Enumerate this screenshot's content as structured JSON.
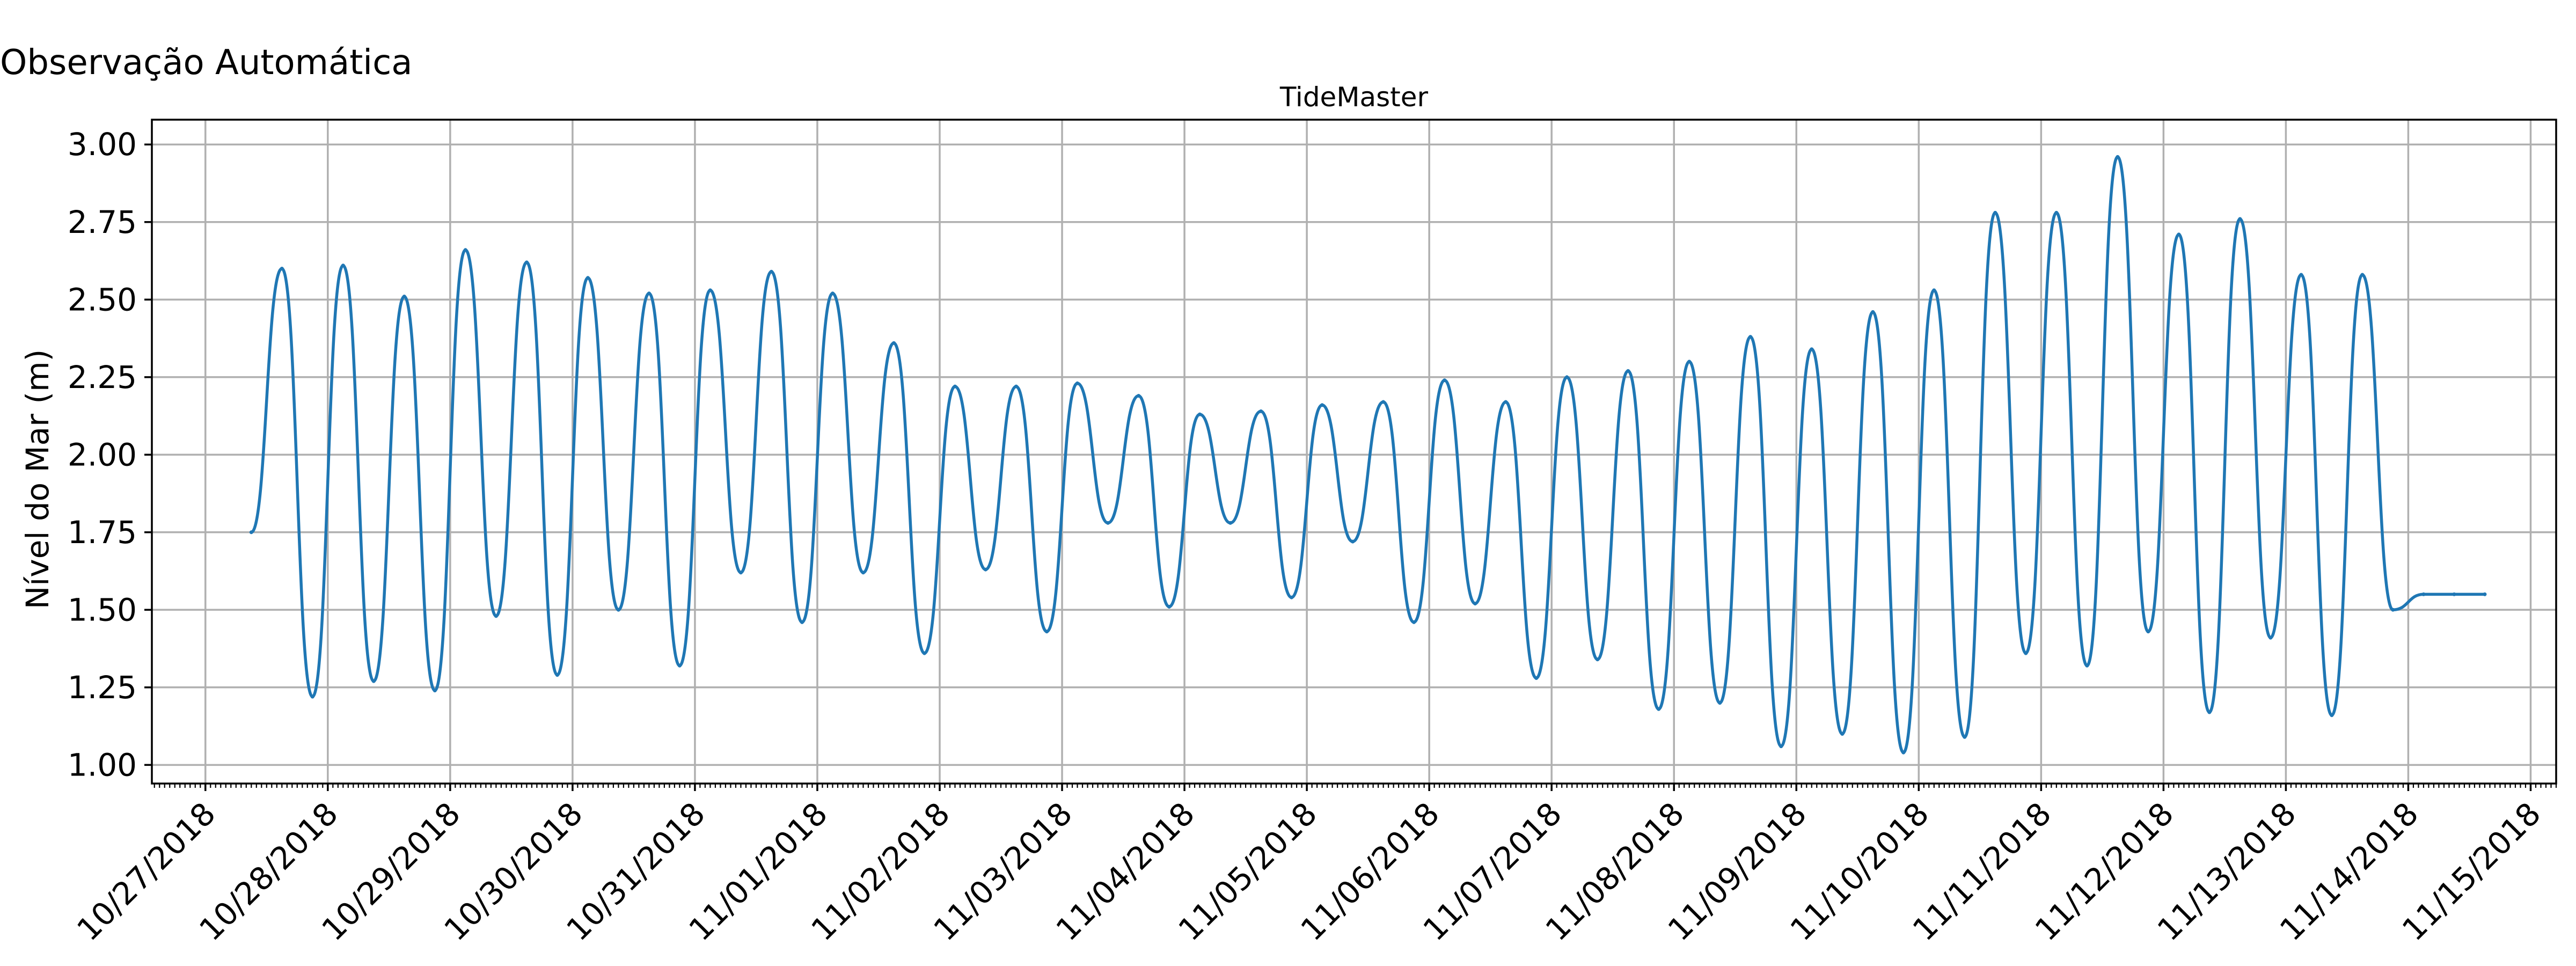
{
  "figure_title": "Observação Automática",
  "chart_data": {
    "type": "line",
    "title": "TideMaster",
    "xlabel": "",
    "ylabel": "Nível do Mar (m)",
    "x_start": "10/27/2018",
    "x_end": "11/15/2018",
    "xlim": [
      "10/26/2018 13:30",
      "11/15/2018 05:00"
    ],
    "ylim": [
      0.94,
      3.08
    ],
    "x_tick_labels": [
      "10/27/2018",
      "10/28/2018",
      "10/29/2018",
      "10/30/2018",
      "10/31/2018",
      "11/01/2018",
      "11/02/2018",
      "11/03/2018",
      "11/04/2018",
      "11/05/2018",
      "11/06/2018",
      "11/07/2018",
      "11/08/2018",
      "11/09/2018",
      "11/10/2018",
      "11/11/2018",
      "11/12/2018",
      "11/13/2018",
      "11/14/2018",
      "11/15/2018"
    ],
    "y_ticks": [
      1.0,
      1.25,
      1.5,
      1.75,
      2.0,
      2.25,
      2.5,
      2.75,
      3.0
    ],
    "y_tick_labels": [
      "1.00",
      "1.25",
      "1.50",
      "1.75",
      "2.00",
      "2.25",
      "2.50",
      "2.75",
      "3.00"
    ],
    "grid": true,
    "series": [
      {
        "name": "",
        "color": "#1f77b4",
        "x": [
          "10/27/2018 09:00",
          "10/27/2018 15:00",
          "10/27/2018 21:00",
          "10/28/2018 03:00",
          "10/28/2018 09:00",
          "10/28/2018 15:00",
          "10/28/2018 21:00",
          "10/29/2018 03:00",
          "10/29/2018 09:00",
          "10/29/2018 15:00",
          "10/29/2018 21:00",
          "10/30/2018 03:00",
          "10/30/2018 09:00",
          "10/30/2018 15:00",
          "10/30/2018 21:00",
          "10/31/2018 03:00",
          "10/31/2018 09:00",
          "10/31/2018 15:00",
          "10/31/2018 21:00",
          "11/01/2018 03:00",
          "11/01/2018 09:00",
          "11/01/2018 15:00",
          "11/01/2018 21:00",
          "11/02/2018 03:00",
          "11/02/2018 09:00",
          "11/02/2018 15:00",
          "11/02/2018 21:00",
          "11/03/2018 03:00",
          "11/03/2018 09:00",
          "11/03/2018 15:00",
          "11/03/2018 21:00",
          "11/04/2018 03:00",
          "11/04/2018 09:00",
          "11/04/2018 15:00",
          "11/04/2018 21:00",
          "11/05/2018 03:00",
          "11/05/2018 09:00",
          "11/05/2018 15:00",
          "11/05/2018 21:00",
          "11/06/2018 03:00",
          "11/06/2018 09:00",
          "11/06/2018 15:00",
          "11/06/2018 21:00",
          "11/07/2018 03:00",
          "11/07/2018 09:00",
          "11/07/2018 15:00",
          "11/07/2018 21:00",
          "11/08/2018 03:00",
          "11/08/2018 09:00",
          "11/08/2018 15:00",
          "11/08/2018 21:00",
          "11/09/2018 03:00",
          "11/09/2018 09:00",
          "11/09/2018 15:00",
          "11/09/2018 21:00",
          "11/10/2018 03:00",
          "11/10/2018 09:00",
          "11/10/2018 15:00",
          "11/10/2018 21:00",
          "11/11/2018 03:00",
          "11/11/2018 09:00",
          "11/11/2018 15:00",
          "11/11/2018 21:00",
          "11/12/2018 03:00",
          "11/12/2018 09:00",
          "11/12/2018 15:00",
          "11/12/2018 21:00",
          "11/13/2018 03:00",
          "11/13/2018 09:00",
          "11/13/2018 15:00",
          "11/13/2018 21:00",
          "11/14/2018 03:00",
          "11/14/2018 09:00",
          "11/14/2018 15:00"
        ],
        "y": [
          1.75,
          2.6,
          1.22,
          2.61,
          1.27,
          2.51,
          1.24,
          2.66,
          1.48,
          2.62,
          1.29,
          2.57,
          1.5,
          2.52,
          1.32,
          2.53,
          1.62,
          2.59,
          1.46,
          2.52,
          1.62,
          2.36,
          1.36,
          2.22,
          1.63,
          2.22,
          1.43,
          2.23,
          1.78,
          2.19,
          1.51,
          2.13,
          1.78,
          2.14,
          1.54,
          2.16,
          1.72,
          2.17,
          1.46,
          2.24,
          1.52,
          2.17,
          1.28,
          2.25,
          1.34,
          2.27,
          1.18,
          2.3,
          1.2,
          2.38,
          1.06,
          2.34,
          1.1,
          2.46,
          1.04,
          2.53,
          1.09,
          2.78,
          1.36,
          2.78,
          1.32,
          2.96,
          1.43,
          2.71,
          1.17,
          2.76,
          1.41,
          2.58,
          1.16,
          2.58,
          1.5,
          1.55,
          1.55,
          1.55
        ]
      }
    ]
  }
}
